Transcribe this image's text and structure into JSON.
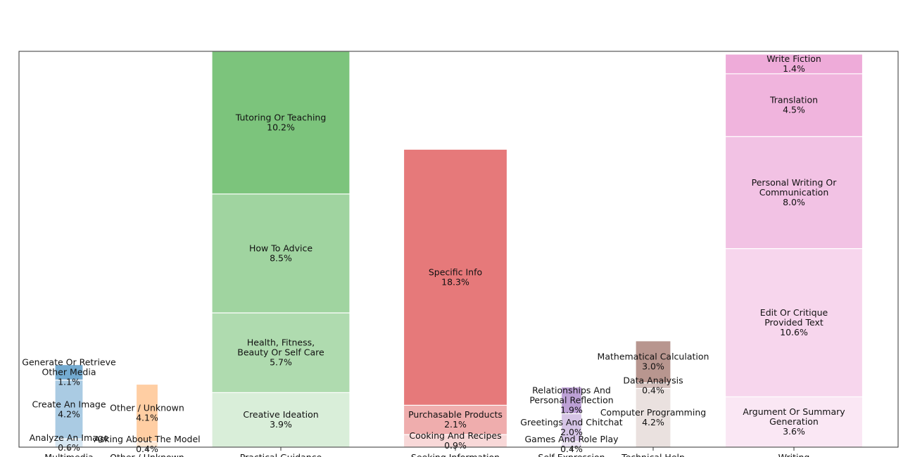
{
  "chart_data": {
    "type": "bar",
    "stacked": true,
    "categories": [
      "Multimedia",
      "Other / Unknown",
      "Practical Guidance",
      "Seeking Information",
      "Self-Expression",
      "Technical Help",
      "Writing"
    ],
    "groups": [
      {
        "category": "Multimedia",
        "color": "#1f77b4",
        "segments": [
          {
            "label": "Analyze An Image",
            "value": 0.6
          },
          {
            "label": "Create An Image",
            "value": 4.2
          },
          {
            "label": "Generate Or Retrieve Other Media",
            "value": 1.1
          }
        ]
      },
      {
        "category": "Other / Unknown",
        "color": "#ff7f0e",
        "segments": [
          {
            "label": "Asking About The Model",
            "value": 0.4
          },
          {
            "label": "Other / Unknown",
            "value": 4.1
          }
        ]
      },
      {
        "category": "Practical Guidance",
        "color": "#2ca02c",
        "segments": [
          {
            "label": "Creative Ideation",
            "value": 3.9
          },
          {
            "label": "Health, Fitness, Beauty Or Self Care",
            "value": 5.7
          },
          {
            "label": "How To Advice",
            "value": 8.5
          },
          {
            "label": "Tutoring Or Teaching",
            "value": 10.2
          }
        ]
      },
      {
        "category": "Seeking Information",
        "color": "#d62728",
        "segments": [
          {
            "label": "Cooking And Recipes",
            "value": 0.9
          },
          {
            "label": "Purchasable Products",
            "value": 2.1
          },
          {
            "label": "Specific Info",
            "value": 18.3
          }
        ]
      },
      {
        "category": "Self-Expression",
        "color": "#9467bd",
        "segments": [
          {
            "label": "Games And Role Play",
            "value": 0.4
          },
          {
            "label": "Greetings And Chitchat",
            "value": 2.0
          },
          {
            "label": "Relationships And Personal Reflection",
            "value": 1.9
          }
        ]
      },
      {
        "category": "Technical Help",
        "color": "#8c564b",
        "segments": [
          {
            "label": "Computer Programming",
            "value": 4.2
          },
          {
            "label": "Data Analysis",
            "value": 0.4
          },
          {
            "label": "Mathematical Calculation",
            "value": 3.0
          }
        ]
      },
      {
        "category": "Writing",
        "color": "#e377c2",
        "segments": [
          {
            "label": "Argument Or Summary Generation",
            "value": 3.6
          },
          {
            "label": "Edit Or Critique Provided Text",
            "value": 10.6
          },
          {
            "label": "Personal Writing Or Communication",
            "value": 8.0
          },
          {
            "label": "Translation",
            "value": 4.5
          },
          {
            "label": "Write Fiction",
            "value": 1.4
          }
        ]
      }
    ],
    "value_unit": "%",
    "grid": false,
    "legend": "none"
  }
}
